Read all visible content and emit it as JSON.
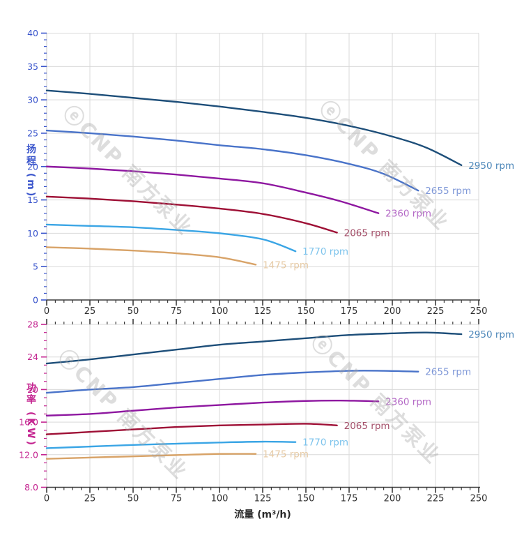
{
  "watermark": {
    "text": "ⓔCNP 南方泵业"
  },
  "axis": {
    "flow_axis_label": "流量 (m³/h)",
    "head_axis_label": "扬程 (m)",
    "power_axis_label": "功率 (KW)",
    "head_axis_color": "#3a55cc",
    "power_axis_color": "#c42490",
    "x_tick_color": "#2e2e2e"
  },
  "chart_data": [
    {
      "type": "line",
      "title": "",
      "xlabel": "",
      "ylabel": "扬程 (m)",
      "xlim": [
        0,
        250
      ],
      "ylim": [
        0,
        40
      ],
      "x_ticks": [
        0,
        25,
        50,
        75,
        100,
        125,
        150,
        175,
        200,
        225,
        250
      ],
      "y_ticks": [
        0,
        5,
        10,
        15,
        20,
        25,
        30,
        35,
        40
      ],
      "y_tick_labels": [
        "0",
        "5",
        "10",
        "15",
        "20",
        "25",
        "30",
        "35",
        "40"
      ],
      "grid": true,
      "legend_position": "curve-end",
      "axis_color": "#3a55cc",
      "series": [
        {
          "name": "2950 rpm",
          "color": "#1d4e79",
          "label_color": "#4d87b9",
          "x": [
            0,
            25,
            50,
            75,
            100,
            125,
            150,
            175,
            200,
            220,
            240
          ],
          "y": [
            31.4,
            30.9,
            30.3,
            29.7,
            29.0,
            28.2,
            27.3,
            26.1,
            24.5,
            22.8,
            20.2
          ]
        },
        {
          "name": "2655 rpm",
          "color": "#4973c9",
          "label_color": "#8099d8",
          "x": [
            0,
            25,
            50,
            75,
            100,
            125,
            150,
            175,
            195,
            215
          ],
          "y": [
            25.4,
            25.0,
            24.5,
            23.9,
            23.2,
            22.6,
            21.7,
            20.4,
            18.9,
            16.4
          ]
        },
        {
          "name": "2360 rpm",
          "color": "#8e17a0",
          "label_color": "#b469c6",
          "x": [
            0,
            25,
            50,
            75,
            100,
            125,
            150,
            170,
            192
          ],
          "y": [
            20.0,
            19.7,
            19.3,
            18.8,
            18.2,
            17.5,
            16.1,
            14.8,
            13.0
          ]
        },
        {
          "name": "2065 rpm",
          "color": "#9e0f35",
          "label_color": "#a34e68",
          "x": [
            0,
            25,
            50,
            75,
            100,
            125,
            150,
            168
          ],
          "y": [
            15.5,
            15.2,
            14.8,
            14.3,
            13.7,
            12.9,
            11.5,
            10.1
          ]
        },
        {
          "name": "1770 rpm",
          "color": "#3aa5e5",
          "label_color": "#7cc3ec",
          "x": [
            0,
            25,
            50,
            75,
            100,
            125,
            144
          ],
          "y": [
            11.3,
            11.1,
            10.9,
            10.5,
            10.0,
            9.1,
            7.3
          ]
        },
        {
          "name": "1475 rpm",
          "color": "#d8a368",
          "label_color": "#e6c9a3",
          "x": [
            0,
            25,
            50,
            75,
            100,
            121
          ],
          "y": [
            7.9,
            7.7,
            7.4,
            7.0,
            6.4,
            5.3
          ]
        }
      ]
    },
    {
      "type": "line",
      "title": "",
      "xlabel": "流量 (m³/h)",
      "ylabel": "功率 (KW)",
      "xlim": [
        0,
        250
      ],
      "ylim": [
        8,
        28
      ],
      "x_ticks": [
        0,
        25,
        50,
        75,
        100,
        125,
        150,
        175,
        200,
        225,
        250
      ],
      "y_ticks": [
        8,
        12,
        16,
        20,
        24,
        28
      ],
      "y_tick_labels": [
        "8.0",
        "12.0",
        "16.0",
        "20",
        "24",
        "28"
      ],
      "grid": true,
      "legend_position": "curve-end",
      "axis_color": "#c42490",
      "series": [
        {
          "name": "2950 rpm",
          "color": "#1d4e79",
          "label_color": "#4d87b9",
          "x": [
            0,
            25,
            50,
            75,
            100,
            125,
            150,
            175,
            200,
            220,
            240
          ],
          "y": [
            23.2,
            23.7,
            24.3,
            24.9,
            25.5,
            25.9,
            26.3,
            26.7,
            26.9,
            27.0,
            26.8
          ]
        },
        {
          "name": "2655 rpm",
          "color": "#4973c9",
          "label_color": "#8099d8",
          "x": [
            0,
            25,
            50,
            75,
            100,
            125,
            150,
            175,
            195,
            215
          ],
          "y": [
            19.6,
            20.0,
            20.3,
            20.8,
            21.3,
            21.8,
            22.1,
            22.3,
            22.3,
            22.2
          ]
        },
        {
          "name": "2360 rpm",
          "color": "#8e17a0",
          "label_color": "#b469c6",
          "x": [
            0,
            25,
            50,
            75,
            100,
            125,
            150,
            170,
            192
          ],
          "y": [
            16.8,
            17.0,
            17.4,
            17.8,
            18.1,
            18.4,
            18.6,
            18.65,
            18.55
          ]
        },
        {
          "name": "2065 rpm",
          "color": "#9e0f35",
          "label_color": "#a34e68",
          "x": [
            0,
            25,
            50,
            75,
            100,
            125,
            150,
            168
          ],
          "y": [
            14.5,
            14.8,
            15.1,
            15.4,
            15.6,
            15.7,
            15.8,
            15.6
          ]
        },
        {
          "name": "1770 rpm",
          "color": "#3aa5e5",
          "label_color": "#7cc3ec",
          "x": [
            0,
            25,
            50,
            75,
            100,
            125,
            144
          ],
          "y": [
            12.8,
            13.0,
            13.2,
            13.35,
            13.5,
            13.6,
            13.55
          ]
        },
        {
          "name": "1475 rpm",
          "color": "#d8a368",
          "label_color": "#e6c9a3",
          "x": [
            0,
            25,
            50,
            75,
            100,
            121
          ],
          "y": [
            11.5,
            11.65,
            11.8,
            11.95,
            12.1,
            12.1
          ]
        }
      ]
    }
  ]
}
